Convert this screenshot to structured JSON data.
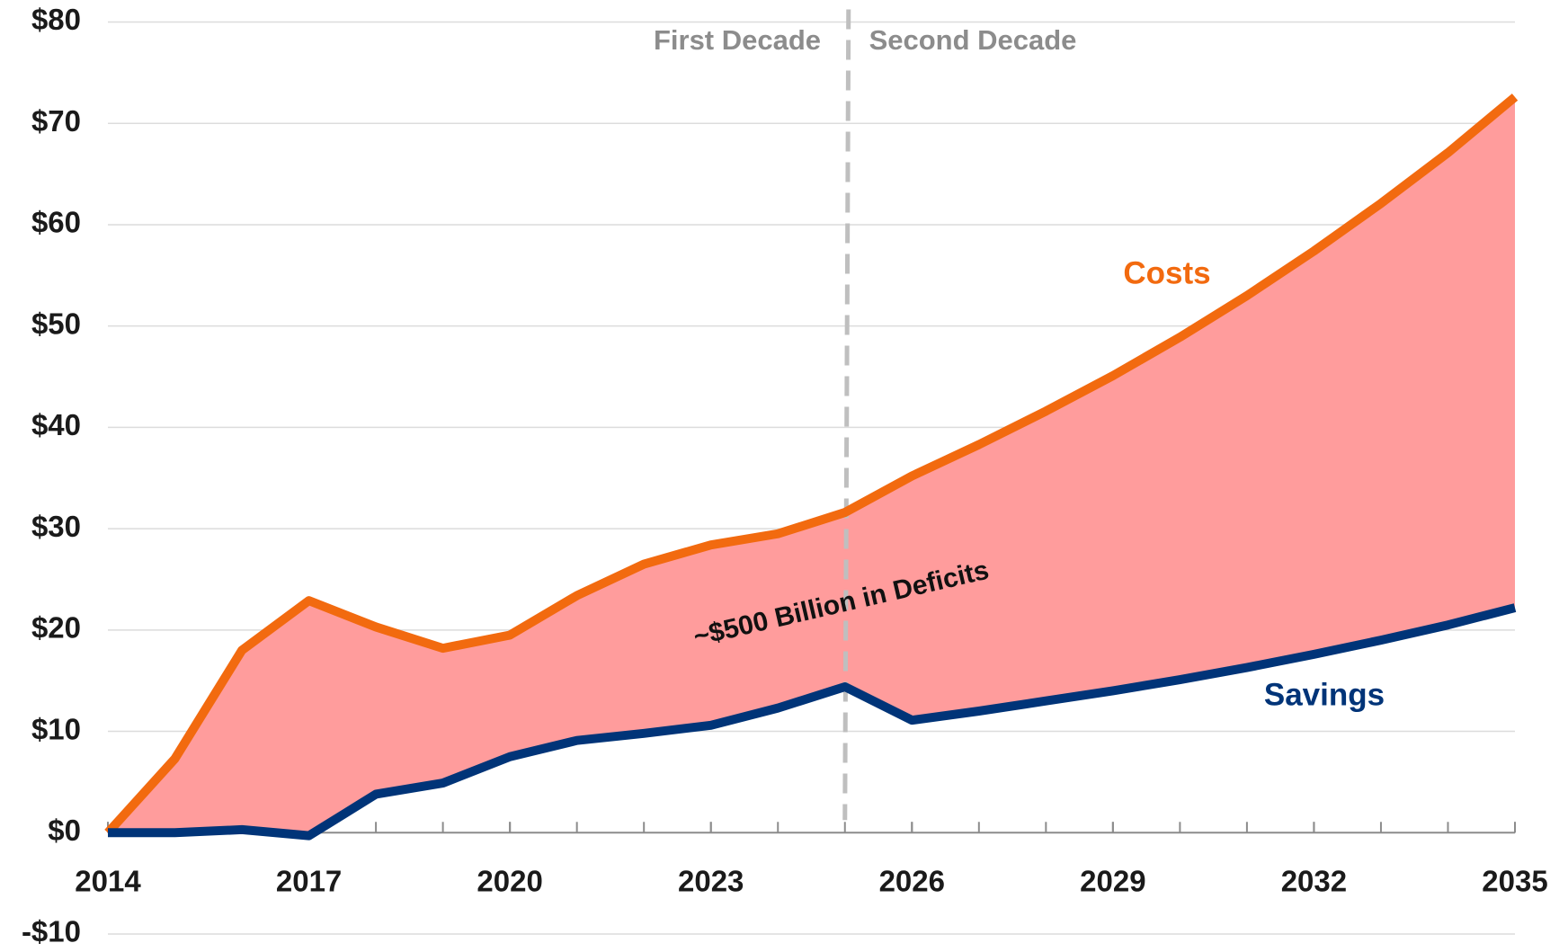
{
  "chart_data": {
    "type": "area-between",
    "x": [
      2014,
      2015,
      2016,
      2017,
      2018,
      2019,
      2020,
      2021,
      2022,
      2023,
      2024,
      2025,
      2026,
      2027,
      2028,
      2029,
      2030,
      2031,
      2032,
      2033,
      2034,
      2035
    ],
    "series": [
      {
        "name": "Costs",
        "color": "#f26a0f",
        "values": [
          0,
          7.3,
          18,
          22.9,
          20.3,
          18.2,
          19.5,
          23.4,
          26.5,
          28.4,
          29.5,
          31.6,
          35.2,
          38.3,
          41.6,
          45.1,
          48.9,
          53,
          57.4,
          62.1,
          67.1,
          72.6
        ]
      },
      {
        "name": "Savings",
        "color": "#003478",
        "values": [
          0,
          0,
          0.3,
          -0.3,
          3.8,
          4.9,
          7.5,
          9.1,
          9.8,
          10.6,
          12.3,
          14.4,
          11.1,
          12,
          13,
          14,
          15.1,
          16.3,
          17.6,
          19,
          20.5,
          22.2
        ]
      }
    ],
    "fill_color": "#ff9c9c",
    "xlim": [
      2014,
      2035
    ],
    "xticks": [
      2014,
      2017,
      2020,
      2023,
      2026,
      2029,
      2032,
      2035
    ],
    "ylim": [
      -10,
      80
    ],
    "yticks": [
      {
        "value": -10,
        "label": "-$10"
      },
      {
        "value": 0,
        "label": "$0"
      },
      {
        "value": 10,
        "label": "$10"
      },
      {
        "value": 20,
        "label": "$20"
      },
      {
        "value": 30,
        "label": "$30"
      },
      {
        "value": 40,
        "label": "$40"
      },
      {
        "value": 50,
        "label": "$50"
      },
      {
        "value": 60,
        "label": "$60"
      },
      {
        "value": 70,
        "label": "$70"
      },
      {
        "value": 80,
        "label": "$80"
      }
    ],
    "grid": true,
    "vline": 2025,
    "annotations": {
      "first": "First Decade",
      "second": "Second Decade",
      "deficits": "~$500 Billion in Deficits"
    }
  }
}
